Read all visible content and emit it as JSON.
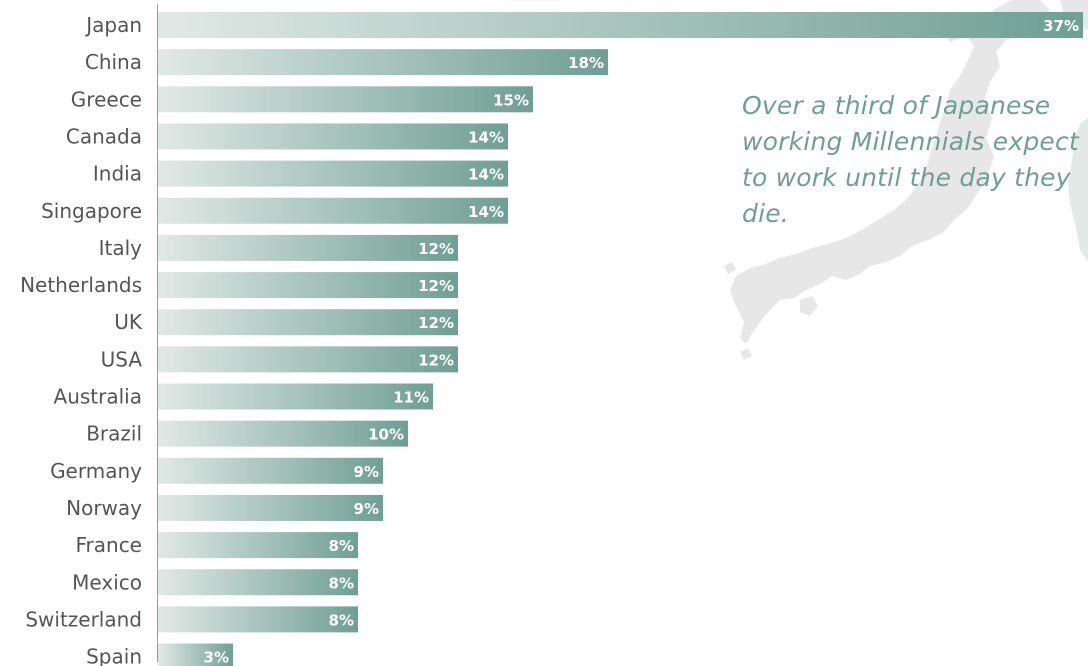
{
  "chart_data": {
    "type": "bar",
    "orientation": "horizontal",
    "categories": [
      "Japan",
      "China",
      "Greece",
      "Canada",
      "India",
      "Singapore",
      "Italy",
      "Netherlands",
      "UK",
      "USA",
      "Australia",
      "Brazil",
      "Germany",
      "Norway",
      "France",
      "Mexico",
      "Switzerland",
      "Spain"
    ],
    "values": [
      37,
      18,
      15,
      14,
      14,
      14,
      12,
      12,
      12,
      12,
      11,
      10,
      9,
      9,
      8,
      8,
      8,
      3
    ],
    "value_labels": [
      "37%",
      "18%",
      "15%",
      "14%",
      "14%",
      "14%",
      "12%",
      "12%",
      "12%",
      "12%",
      "11%",
      "10%",
      "9%",
      "9%",
      "8%",
      "8%",
      "8%",
      "3%"
    ],
    "xlim": [
      0,
      37
    ],
    "title": "",
    "xlabel": "",
    "ylabel": "",
    "grid": false,
    "legend": "none",
    "annotation": "Over a third of Japanese working Millennials expect to work until the day they die.",
    "colors": {
      "bar_start": "#e1e9e6",
      "bar_end": "#6f9f94",
      "label_text": "#555555",
      "value_text": "#ffffff",
      "annotation_text": "#6f9f94",
      "axis_line": "#999999",
      "map_fill": "#e7e7e7"
    }
  }
}
